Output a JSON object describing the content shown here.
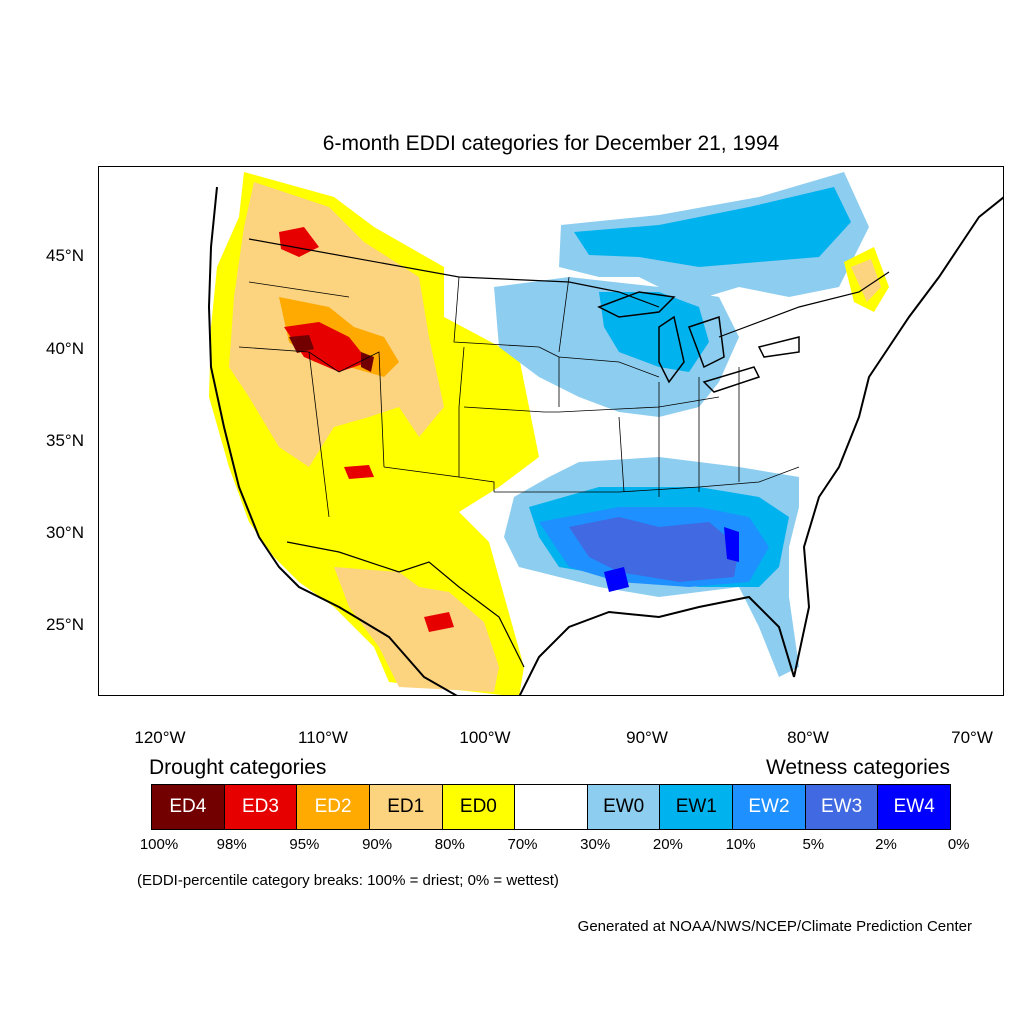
{
  "title": "6-month EDDI categories for December 21, 1994",
  "lat_labels": [
    "45°N",
    "40°N",
    "35°N",
    "30°N",
    "25°N"
  ],
  "lon_labels": [
    "120°W",
    "110°W",
    "100°W",
    "90°W",
    "80°W",
    "70°W"
  ],
  "drought_heading": "Drought categories",
  "wetness_heading": "Wetness categories",
  "legend": [
    {
      "label": "ED4",
      "color": "#730000",
      "text_color": "#ffffff"
    },
    {
      "label": "ED3",
      "color": "#e60000",
      "text_color": "#ffffff"
    },
    {
      "label": "ED2",
      "color": "#ffaa00",
      "text_color": "#ffffff"
    },
    {
      "label": "ED1",
      "color": "#fcd37f",
      "text_color": "#000000"
    },
    {
      "label": "ED0",
      "color": "#ffff00",
      "text_color": "#000000"
    },
    {
      "label": "",
      "color": "#ffffff",
      "text_color": "#000000"
    },
    {
      "label": "EW0",
      "color": "#8dcdef",
      "text_color": "#000000"
    },
    {
      "label": "EW1",
      "color": "#00b2ee",
      "text_color": "#000000"
    },
    {
      "label": "EW2",
      "color": "#1e90ff",
      "text_color": "#ffffff"
    },
    {
      "label": "EW3",
      "color": "#4169e1",
      "text_color": "#ffffff"
    },
    {
      "label": "EW4",
      "color": "#0000ff",
      "text_color": "#ffffff"
    }
  ],
  "percent_labels": [
    "100%",
    "98%",
    "95%",
    "90%",
    "80%",
    "70%",
    "30%",
    "20%",
    "10%",
    "5%",
    "2%",
    "0%"
  ],
  "note": "(EDDI-percentile category breaks: 100% = driest; 0% = wettest)",
  "credit": "Generated at NOAA/NWS/NCEP/Climate Prediction Center"
}
